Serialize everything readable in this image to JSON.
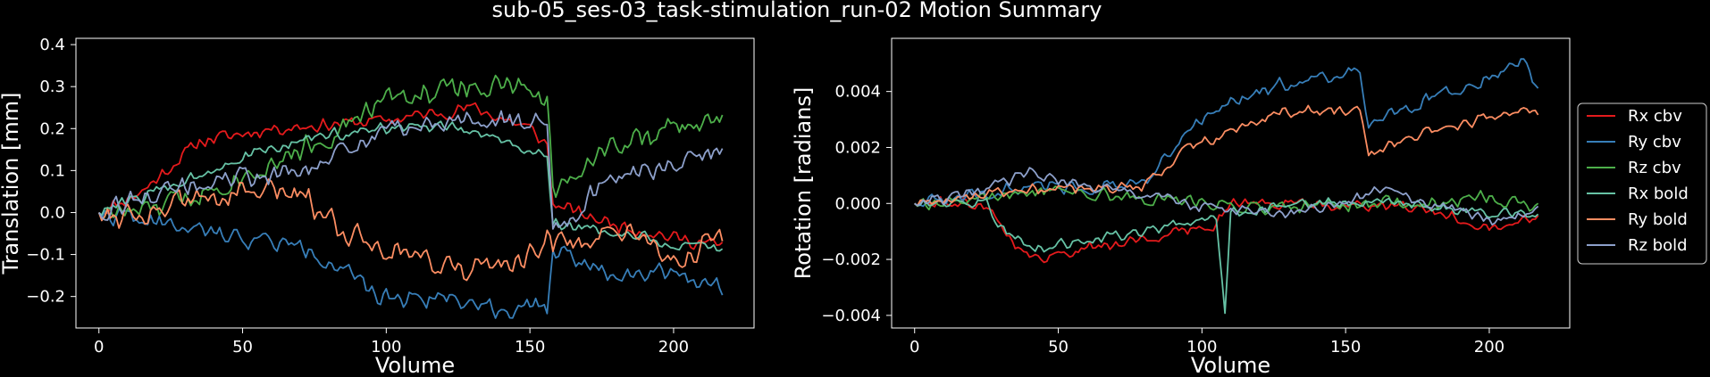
{
  "figure": {
    "title": "sub-05_ses-03_task-stimulation_run-02 Motion Summary",
    "background": "#000000",
    "foreground": "#ffffff"
  },
  "legend": {
    "placement": "right of right panel, vertically centered",
    "entries": [
      {
        "label": "Rx cbv",
        "color": "#e41a1c"
      },
      {
        "label": "Ry cbv",
        "color": "#377eb8"
      },
      {
        "label": "Rz cbv",
        "color": "#4daf4a"
      },
      {
        "label": "Rx bold",
        "color": "#66c2a5"
      },
      {
        "label": "Ry bold",
        "color": "#fc8d62"
      },
      {
        "label": "Rz bold",
        "color": "#8da0cb"
      }
    ]
  },
  "chart_data": [
    {
      "type": "line",
      "xlabel": "Volume",
      "ylabel": "Translation [mm]",
      "xlim": [
        -8,
        228
      ],
      "ylim": [
        -0.275,
        0.415
      ],
      "xticks": [
        0,
        50,
        100,
        150,
        200
      ],
      "xtick_labels": [
        "0",
        "50",
        "100",
        "150",
        "200"
      ],
      "yticks": [
        -0.2,
        -0.1,
        0.0,
        0.1,
        0.2,
        0.3,
        0.4
      ],
      "ytick_labels": [
        "−0.2",
        "−0.1",
        "0.0",
        "0.1",
        "0.2",
        "0.3",
        "0.4"
      ],
      "grid": false,
      "n_volumes": 218,
      "series": [
        {
          "color": "#e41a1c",
          "keypoints": [
            [
              0,
              0.0
            ],
            [
              15,
              0.05
            ],
            [
              35,
              0.17
            ],
            [
              60,
              0.2
            ],
            [
              100,
              0.22
            ],
            [
              130,
              0.25
            ],
            [
              150,
              0.2
            ],
            [
              156,
              0.16
            ],
            [
              158,
              0.02
            ],
            [
              175,
              -0.02
            ],
            [
              200,
              -0.06
            ],
            [
              217,
              -0.08
            ]
          ],
          "noise": 0.02,
          "seed": 11
        },
        {
          "color": "#377eb8",
          "keypoints": [
            [
              0,
              0.0
            ],
            [
              15,
              -0.02
            ],
            [
              40,
              -0.05
            ],
            [
              70,
              -0.08
            ],
            [
              85,
              -0.13
            ],
            [
              95,
              -0.2
            ],
            [
              120,
              -0.2
            ],
            [
              140,
              -0.23
            ],
            [
              156,
              -0.23
            ],
            [
              158,
              -0.08
            ],
            [
              175,
              -0.14
            ],
            [
              200,
              -0.14
            ],
            [
              217,
              -0.18
            ]
          ],
          "noise": 0.028,
          "seed": 22
        },
        {
          "color": "#4daf4a",
          "keypoints": [
            [
              0,
              0.0
            ],
            [
              15,
              0.0
            ],
            [
              40,
              0.06
            ],
            [
              60,
              0.12
            ],
            [
              80,
              0.18
            ],
            [
              100,
              0.27
            ],
            [
              125,
              0.3
            ],
            [
              145,
              0.3
            ],
            [
              156,
              0.27
            ],
            [
              158,
              0.05
            ],
            [
              175,
              0.15
            ],
            [
              200,
              0.2
            ],
            [
              217,
              0.22
            ]
          ],
          "noise": 0.035,
          "seed": 33
        },
        {
          "color": "#66c2a5",
          "keypoints": [
            [
              0,
              0.0
            ],
            [
              20,
              0.05
            ],
            [
              45,
              0.12
            ],
            [
              75,
              0.18
            ],
            [
              100,
              0.2
            ],
            [
              125,
              0.2
            ],
            [
              150,
              0.15
            ],
            [
              156,
              0.14
            ],
            [
              158,
              -0.03
            ],
            [
              185,
              -0.05
            ],
            [
              200,
              -0.08
            ],
            [
              217,
              -0.09
            ]
          ],
          "noise": 0.018,
          "seed": 44
        },
        {
          "color": "#fc8d62",
          "keypoints": [
            [
              0,
              0.0
            ],
            [
              15,
              0.0
            ],
            [
              40,
              0.04
            ],
            [
              70,
              0.05
            ],
            [
              85,
              -0.04
            ],
            [
              100,
              -0.08
            ],
            [
              130,
              -0.14
            ],
            [
              150,
              -0.1
            ],
            [
              156,
              -0.05
            ],
            [
              158,
              -0.08
            ],
            [
              180,
              -0.05
            ],
            [
              200,
              -0.11
            ],
            [
              217,
              -0.07
            ]
          ],
          "noise": 0.04,
          "seed": 55
        },
        {
          "color": "#8da0cb",
          "keypoints": [
            [
              0,
              0.0
            ],
            [
              15,
              0.04
            ],
            [
              45,
              0.08
            ],
            [
              75,
              0.1
            ],
            [
              85,
              0.15
            ],
            [
              100,
              0.2
            ],
            [
              120,
              0.21
            ],
            [
              145,
              0.22
            ],
            [
              156,
              0.22
            ],
            [
              158,
              -0.05
            ],
            [
              175,
              0.07
            ],
            [
              200,
              0.12
            ],
            [
              217,
              0.15
            ]
          ],
          "noise": 0.03,
          "seed": 66
        }
      ]
    },
    {
      "type": "line",
      "xlabel": "Volume",
      "ylabel": "Rotation [radians]",
      "xlim": [
        -8,
        228
      ],
      "ylim": [
        -0.00445,
        0.0059
      ],
      "xticks": [
        0,
        50,
        100,
        150,
        200
      ],
      "xtick_labels": [
        "0",
        "50",
        "100",
        "150",
        "200"
      ],
      "yticks": [
        -0.004,
        -0.002,
        0.0,
        0.002,
        0.004
      ],
      "ytick_labels": [
        "−0.004",
        "−0.002",
        "0.000",
        "0.002",
        "0.004"
      ],
      "grid": false,
      "n_volumes": 218,
      "series": [
        {
          "color": "#e41a1c",
          "keypoints": [
            [
              0,
              0.0
            ],
            [
              25,
              0.0
            ],
            [
              30,
              -0.0008
            ],
            [
              40,
              -0.002
            ],
            [
              60,
              -0.0016
            ],
            [
              85,
              -0.0012
            ],
            [
              105,
              -0.0007
            ],
            [
              110,
              0.0
            ],
            [
              140,
              0.0
            ],
            [
              175,
              -0.0002
            ],
            [
              200,
              -0.0008
            ],
            [
              217,
              -0.0004
            ]
          ],
          "noise": 0.00025,
          "seed": 111
        },
        {
          "color": "#377eb8",
          "keypoints": [
            [
              0,
              0.0
            ],
            [
              40,
              0.0006
            ],
            [
              80,
              0.0006
            ],
            [
              88,
              0.0018
            ],
            [
              95,
              0.0026
            ],
            [
              110,
              0.0036
            ],
            [
              125,
              0.0042
            ],
            [
              155,
              0.0048
            ],
            [
              158,
              0.0027
            ],
            [
              175,
              0.0036
            ],
            [
              200,
              0.0045
            ],
            [
              212,
              0.0052
            ],
            [
              217,
              0.0042
            ]
          ],
          "noise": 0.0003,
          "seed": 122
        },
        {
          "color": "#4daf4a",
          "keypoints": [
            [
              0,
              0.0
            ],
            [
              30,
              0.0003
            ],
            [
              45,
              0.0005
            ],
            [
              80,
              0.0002
            ],
            [
              105,
              0.0
            ],
            [
              120,
              -0.0002
            ],
            [
              150,
              0.0
            ],
            [
              180,
              0.0
            ],
            [
              200,
              0.0002
            ],
            [
              217,
              -0.0002
            ]
          ],
          "noise": 0.0003,
          "seed": 133
        },
        {
          "color": "#66c2a5",
          "keypoints": [
            [
              0,
              0.0
            ],
            [
              25,
              0.0
            ],
            [
              30,
              -0.0008
            ],
            [
              40,
              -0.0016
            ],
            [
              60,
              -0.0013
            ],
            [
              85,
              -0.0009
            ],
            [
              105,
              -0.0005
            ],
            [
              108,
              -0.0038
            ],
            [
              110,
              -0.0003
            ],
            [
              140,
              0.0
            ],
            [
              175,
              0.0
            ],
            [
              200,
              -0.0004
            ],
            [
              217,
              -0.0003
            ]
          ],
          "noise": 0.00022,
          "seed": 144
        },
        {
          "color": "#fc8d62",
          "keypoints": [
            [
              0,
              0.0
            ],
            [
              40,
              0.0005
            ],
            [
              80,
              0.0006
            ],
            [
              88,
              0.0013
            ],
            [
              95,
              0.002
            ],
            [
              105,
              0.0023
            ],
            [
              125,
              0.0032
            ],
            [
              155,
              0.0034
            ],
            [
              158,
              0.0017
            ],
            [
              175,
              0.0025
            ],
            [
              200,
              0.0031
            ],
            [
              217,
              0.0033
            ]
          ],
          "noise": 0.00025,
          "seed": 155
        },
        {
          "color": "#8da0cb",
          "keypoints": [
            [
              0,
              0.0
            ],
            [
              20,
              0.0003
            ],
            [
              40,
              0.0011
            ],
            [
              60,
              0.0006
            ],
            [
              80,
              0.0003
            ],
            [
              105,
              -0.0002
            ],
            [
              130,
              -0.0004
            ],
            [
              150,
              0.0
            ],
            [
              160,
              0.0005
            ],
            [
              180,
              0.0
            ],
            [
              200,
              -0.0006
            ],
            [
              217,
              -0.0002
            ]
          ],
          "noise": 0.00025,
          "seed": 166
        }
      ]
    }
  ]
}
